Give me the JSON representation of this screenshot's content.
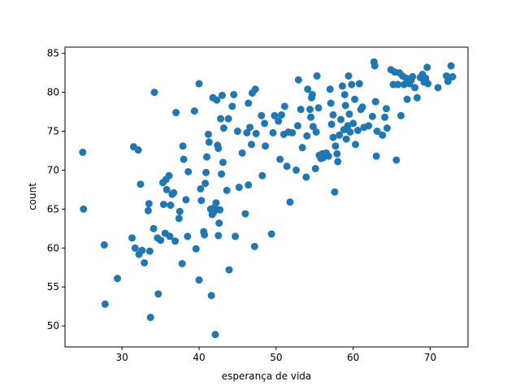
{
  "chart_data": {
    "type": "scatter",
    "title": "",
    "xlabel": "esperança de vida",
    "ylabel": "count",
    "xlim": [
      22.6,
      74.9
    ],
    "ylim": [
      47.3,
      85.8
    ],
    "xticks": [
      30,
      40,
      50,
      60,
      70
    ],
    "yticks": [
      50,
      55,
      60,
      65,
      70,
      75,
      80,
      85
    ],
    "grid": false,
    "legend": "none",
    "marker_color": "#1f77b4",
    "points": [
      [
        24.9,
        72.3
      ],
      [
        25.0,
        65.0
      ],
      [
        27.7,
        60.4
      ],
      [
        27.8,
        52.8
      ],
      [
        29.4,
        56.1
      ],
      [
        31.3,
        61.3
      ],
      [
        31.5,
        73.0
      ],
      [
        31.7,
        60.0
      ],
      [
        32.1,
        72.6
      ],
      [
        32.2,
        59.2
      ],
      [
        32.4,
        68.2
      ],
      [
        32.6,
        59.7
      ],
      [
        32.9,
        58.1
      ],
      [
        33.4,
        64.8
      ],
      [
        33.5,
        65.7
      ],
      [
        33.6,
        59.6
      ],
      [
        33.7,
        51.1
      ],
      [
        34.1,
        62.5
      ],
      [
        34.2,
        80.0
      ],
      [
        34.6,
        61.3
      ],
      [
        34.7,
        54.1
      ],
      [
        35.0,
        61.0
      ],
      [
        35.3,
        68.4
      ],
      [
        35.4,
        65.6
      ],
      [
        35.6,
        61.9
      ],
      [
        35.7,
        68.8
      ],
      [
        35.8,
        67.5
      ],
      [
        36.1,
        69.3
      ],
      [
        36.2,
        61.5
      ],
      [
        36.3,
        65.5
      ],
      [
        36.5,
        66.9
      ],
      [
        36.7,
        67.1
      ],
      [
        36.9,
        60.9
      ],
      [
        37.0,
        77.4
      ],
      [
        37.4,
        63.8
      ],
      [
        37.5,
        64.7
      ],
      [
        37.8,
        58.0
      ],
      [
        37.9,
        73.1
      ],
      [
        38.0,
        71.4
      ],
      [
        38.3,
        66.2
      ],
      [
        38.5,
        61.5
      ],
      [
        38.6,
        69.8
      ],
      [
        39.4,
        77.6
      ],
      [
        39.6,
        59.9
      ],
      [
        40.0,
        55.9
      ],
      [
        40.0,
        81.1
      ],
      [
        40.2,
        67.6
      ],
      [
        40.3,
        66.1
      ],
      [
        40.6,
        62.1
      ],
      [
        40.7,
        61.7
      ],
      [
        40.8,
        68.3
      ],
      [
        40.9,
        69.7
      ],
      [
        41.0,
        71.7
      ],
      [
        41.2,
        74.6
      ],
      [
        41.3,
        73.6
      ],
      [
        41.5,
        65.0
      ],
      [
        41.6,
        53.9
      ],
      [
        41.7,
        64.3
      ],
      [
        41.8,
        79.3
      ],
      [
        41.9,
        64.6
      ],
      [
        42.0,
        65.2
      ],
      [
        42.1,
        48.9
      ],
      [
        42.2,
        65.8
      ],
      [
        42.3,
        79.0
      ],
      [
        42.4,
        73.2
      ],
      [
        42.5,
        72.8
      ],
      [
        42.5,
        61.6
      ],
      [
        42.6,
        63.2
      ],
      [
        42.7,
        64.9
      ],
      [
        42.8,
        76.6
      ],
      [
        42.9,
        69.5
      ],
      [
        43.0,
        79.6
      ],
      [
        43.1,
        71.0
      ],
      [
        43.2,
        75.4
      ],
      [
        43.6,
        67.4
      ],
      [
        43.8,
        76.6
      ],
      [
        43.9,
        57.2
      ],
      [
        44.3,
        78.2
      ],
      [
        44.5,
        79.7
      ],
      [
        44.7,
        61.5
      ],
      [
        45.0,
        75.0
      ],
      [
        45.2,
        67.8
      ],
      [
        45.6,
        72.2
      ],
      [
        46.0,
        64.4
      ],
      [
        46.2,
        74.8
      ],
      [
        46.4,
        68.1
      ],
      [
        46.4,
        78.6
      ],
      [
        46.6,
        75.5
      ],
      [
        46.8,
        73.3
      ],
      [
        46.9,
        79.9
      ],
      [
        47.2,
        60.2
      ],
      [
        47.3,
        80.4
      ],
      [
        47.4,
        74.7
      ],
      [
        48.1,
        77.0
      ],
      [
        48.2,
        69.3
      ],
      [
        48.5,
        76.0
      ],
      [
        48.6,
        73.1
      ],
      [
        49.4,
        61.8
      ],
      [
        49.6,
        74.8
      ],
      [
        49.8,
        77.0
      ],
      [
        50.3,
        76.3
      ],
      [
        50.5,
        71.4
      ],
      [
        50.7,
        77.1
      ],
      [
        51.0,
        74.6
      ],
      [
        51.1,
        78.2
      ],
      [
        51.4,
        70.5
      ],
      [
        51.6,
        74.9
      ],
      [
        51.8,
        65.9
      ],
      [
        52.1,
        74.8
      ],
      [
        52.6,
        70.0
      ],
      [
        52.8,
        75.7
      ],
      [
        52.9,
        81.6
      ],
      [
        53.2,
        77.8
      ],
      [
        53.4,
        72.9
      ],
      [
        53.9,
        69.1
      ],
      [
        54.0,
        74.4
      ],
      [
        54.1,
        80.4
      ],
      [
        54.4,
        77.8
      ],
      [
        54.5,
        76.8
      ],
      [
        54.6,
        79.3
      ],
      [
        54.7,
        79.7
      ],
      [
        54.8,
        75.6
      ],
      [
        55.1,
        70.2
      ],
      [
        55.2,
        74.9
      ],
      [
        55.3,
        82.1
      ],
      [
        55.5,
        78.0
      ],
      [
        55.6,
        71.9
      ],
      [
        55.8,
        71.5
      ],
      [
        56.0,
        72.1
      ],
      [
        56.1,
        71.6
      ],
      [
        56.3,
        71.9
      ],
      [
        56.5,
        72.2
      ],
      [
        56.8,
        71.8
      ],
      [
        57.0,
        80.4
      ],
      [
        57.1,
        78.6
      ],
      [
        57.2,
        75.9
      ],
      [
        57.4,
        77.1
      ],
      [
        57.4,
        74.2
      ],
      [
        57.6,
        67.2
      ],
      [
        57.7,
        73.1
      ],
      [
        57.9,
        72.1
      ],
      [
        58.0,
        71.1
      ],
      [
        58.2,
        74.5
      ],
      [
        58.4,
        76.5
      ],
      [
        58.6,
        80.8
      ],
      [
        58.8,
        75.2
      ],
      [
        58.9,
        79.7
      ],
      [
        59.0,
        78.3
      ],
      [
        59.1,
        74.0
      ],
      [
        59.3,
        75.7
      ],
      [
        59.4,
        82.1
      ],
      [
        59.5,
        77.2
      ],
      [
        59.6,
        74.9
      ],
      [
        59.8,
        81.0
      ],
      [
        60.0,
        76.0
      ],
      [
        60.2,
        79.1
      ],
      [
        60.3,
        73.3
      ],
      [
        60.6,
        75.1
      ],
      [
        60.8,
        81.1
      ],
      [
        61.0,
        77.8
      ],
      [
        61.2,
        78.1
      ],
      [
        61.4,
        75.5
      ],
      [
        62.0,
        75.7
      ],
      [
        62.5,
        76.9
      ],
      [
        62.7,
        83.9
      ],
      [
        62.8,
        83.4
      ],
      [
        62.9,
        78.8
      ],
      [
        63.0,
        71.8
      ],
      [
        63.1,
        75.0
      ],
      [
        63.8,
        74.5
      ],
      [
        64.1,
        76.8
      ],
      [
        64.3,
        77.9
      ],
      [
        64.4,
        75.4
      ],
      [
        64.9,
        82.9
      ],
      [
        65.2,
        81.0
      ],
      [
        65.4,
        82.6
      ],
      [
        65.6,
        71.3
      ],
      [
        65.8,
        81.0
      ],
      [
        66.0,
        82.5
      ],
      [
        66.2,
        77.0
      ],
      [
        66.4,
        82.1
      ],
      [
        66.6,
        81.0
      ],
      [
        66.9,
        81.8
      ],
      [
        67.0,
        79.1
      ],
      [
        67.3,
        81.1
      ],
      [
        67.5,
        81.5
      ],
      [
        67.7,
        82.0
      ],
      [
        68.0,
        80.6
      ],
      [
        68.3,
        79.3
      ],
      [
        68.7,
        81.9
      ],
      [
        69.0,
        82.3
      ],
      [
        69.2,
        81.3
      ],
      [
        69.4,
        81.8
      ],
      [
        69.6,
        83.2
      ],
      [
        69.7,
        81.1
      ],
      [
        71.0,
        80.6
      ],
      [
        72.1,
        82.1
      ],
      [
        72.3,
        81.4
      ],
      [
        72.7,
        83.4
      ],
      [
        72.9,
        82.0
      ]
    ]
  }
}
